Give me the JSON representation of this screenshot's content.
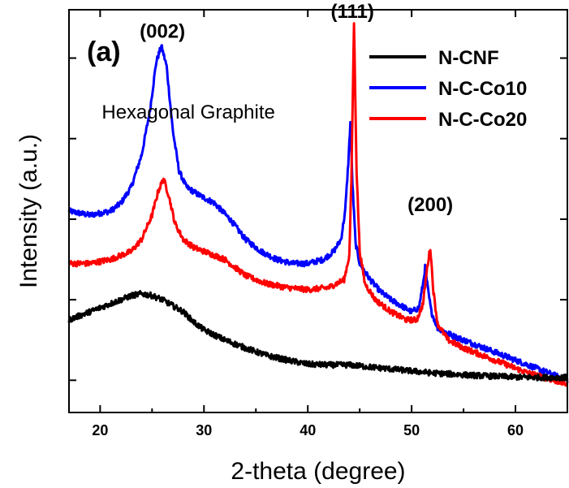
{
  "chart_data": {
    "type": "line",
    "title": "",
    "panel_label": "(a)",
    "xlabel": "2-theta (degree)",
    "ylabel": "Intensity (a.u.)",
    "xlim": [
      17,
      65
    ],
    "ylim": [
      0,
      1.0
    ],
    "x_ticks": [
      20,
      30,
      40,
      50,
      60
    ],
    "y_ticks_unlabeled": [
      0.08,
      0.28,
      0.48,
      0.68,
      0.88
    ],
    "grid": false,
    "legend_position": "top-right",
    "annotations": [
      {
        "text": "(002)",
        "x": 26.0,
        "y": 0.93
      },
      {
        "text": "(111)",
        "x": 44.3,
        "y": 0.98
      },
      {
        "text": "(200)",
        "x": 51.8,
        "y": 0.5
      },
      {
        "text": "Hexagonal Graphite",
        "x": 28.5,
        "y": 0.73
      }
    ],
    "series": [
      {
        "name": "N-CNF",
        "color": "#000000",
        "x": [
          17,
          18,
          20,
          22,
          23,
          24,
          25,
          26,
          27,
          28,
          29,
          30,
          32,
          34,
          36,
          38,
          40,
          42,
          44,
          46,
          48,
          50,
          52,
          54,
          56,
          58,
          60,
          62,
          65
        ],
        "y": [
          0.23,
          0.24,
          0.26,
          0.28,
          0.29,
          0.295,
          0.29,
          0.28,
          0.265,
          0.25,
          0.225,
          0.205,
          0.18,
          0.16,
          0.142,
          0.13,
          0.12,
          0.118,
          0.118,
          0.113,
          0.108,
          0.103,
          0.098,
          0.095,
          0.092,
          0.09,
          0.088,
          0.087,
          0.087
        ]
      },
      {
        "name": "N-C-Co10",
        "color": "#0000ff",
        "x": [
          17,
          19,
          21,
          22,
          23,
          24,
          24.8,
          25.4,
          25.9,
          26.4,
          27,
          27.6,
          28.3,
          29.5,
          31,
          32.5,
          34,
          35.5,
          37,
          38.5,
          40,
          41.5,
          42.5,
          43.2,
          43.6,
          43.9,
          44.1,
          44.3,
          44.6,
          45,
          46,
          47,
          48,
          49,
          50,
          50.7,
          51.1,
          51.3,
          51.6,
          51.9,
          52.5,
          54,
          56,
          58,
          60,
          62,
          65
        ],
        "y": [
          0.5,
          0.49,
          0.5,
          0.52,
          0.56,
          0.64,
          0.75,
          0.87,
          0.91,
          0.86,
          0.7,
          0.6,
          0.56,
          0.54,
          0.52,
          0.48,
          0.43,
          0.4,
          0.38,
          0.37,
          0.37,
          0.38,
          0.4,
          0.43,
          0.5,
          0.62,
          0.72,
          0.57,
          0.42,
          0.37,
          0.33,
          0.3,
          0.28,
          0.265,
          0.25,
          0.26,
          0.32,
          0.36,
          0.3,
          0.25,
          0.21,
          0.19,
          0.17,
          0.15,
          0.13,
          0.11,
          0.08
        ]
      },
      {
        "name": "N-C-Co20",
        "color": "#ff0000",
        "x": [
          17,
          19,
          21,
          23,
          24,
          25,
          25.6,
          26.1,
          26.6,
          27.2,
          28,
          29,
          30,
          32,
          34,
          36,
          38,
          40,
          42,
          43.5,
          44,
          44.2,
          44.45,
          44.7,
          45,
          45.5,
          46.5,
          48,
          49.5,
          50.5,
          51.1,
          51.5,
          51.8,
          52.1,
          52.5,
          53.5,
          55,
          57,
          59,
          61,
          63,
          65
        ],
        "y": [
          0.37,
          0.37,
          0.38,
          0.4,
          0.43,
          0.49,
          0.55,
          0.58,
          0.54,
          0.47,
          0.43,
          0.41,
          0.4,
          0.38,
          0.34,
          0.32,
          0.31,
          0.305,
          0.31,
          0.33,
          0.39,
          0.58,
          0.97,
          0.6,
          0.4,
          0.32,
          0.28,
          0.25,
          0.23,
          0.23,
          0.27,
          0.36,
          0.41,
          0.3,
          0.22,
          0.18,
          0.16,
          0.14,
          0.12,
          0.1,
          0.085,
          0.07
        ]
      }
    ]
  }
}
